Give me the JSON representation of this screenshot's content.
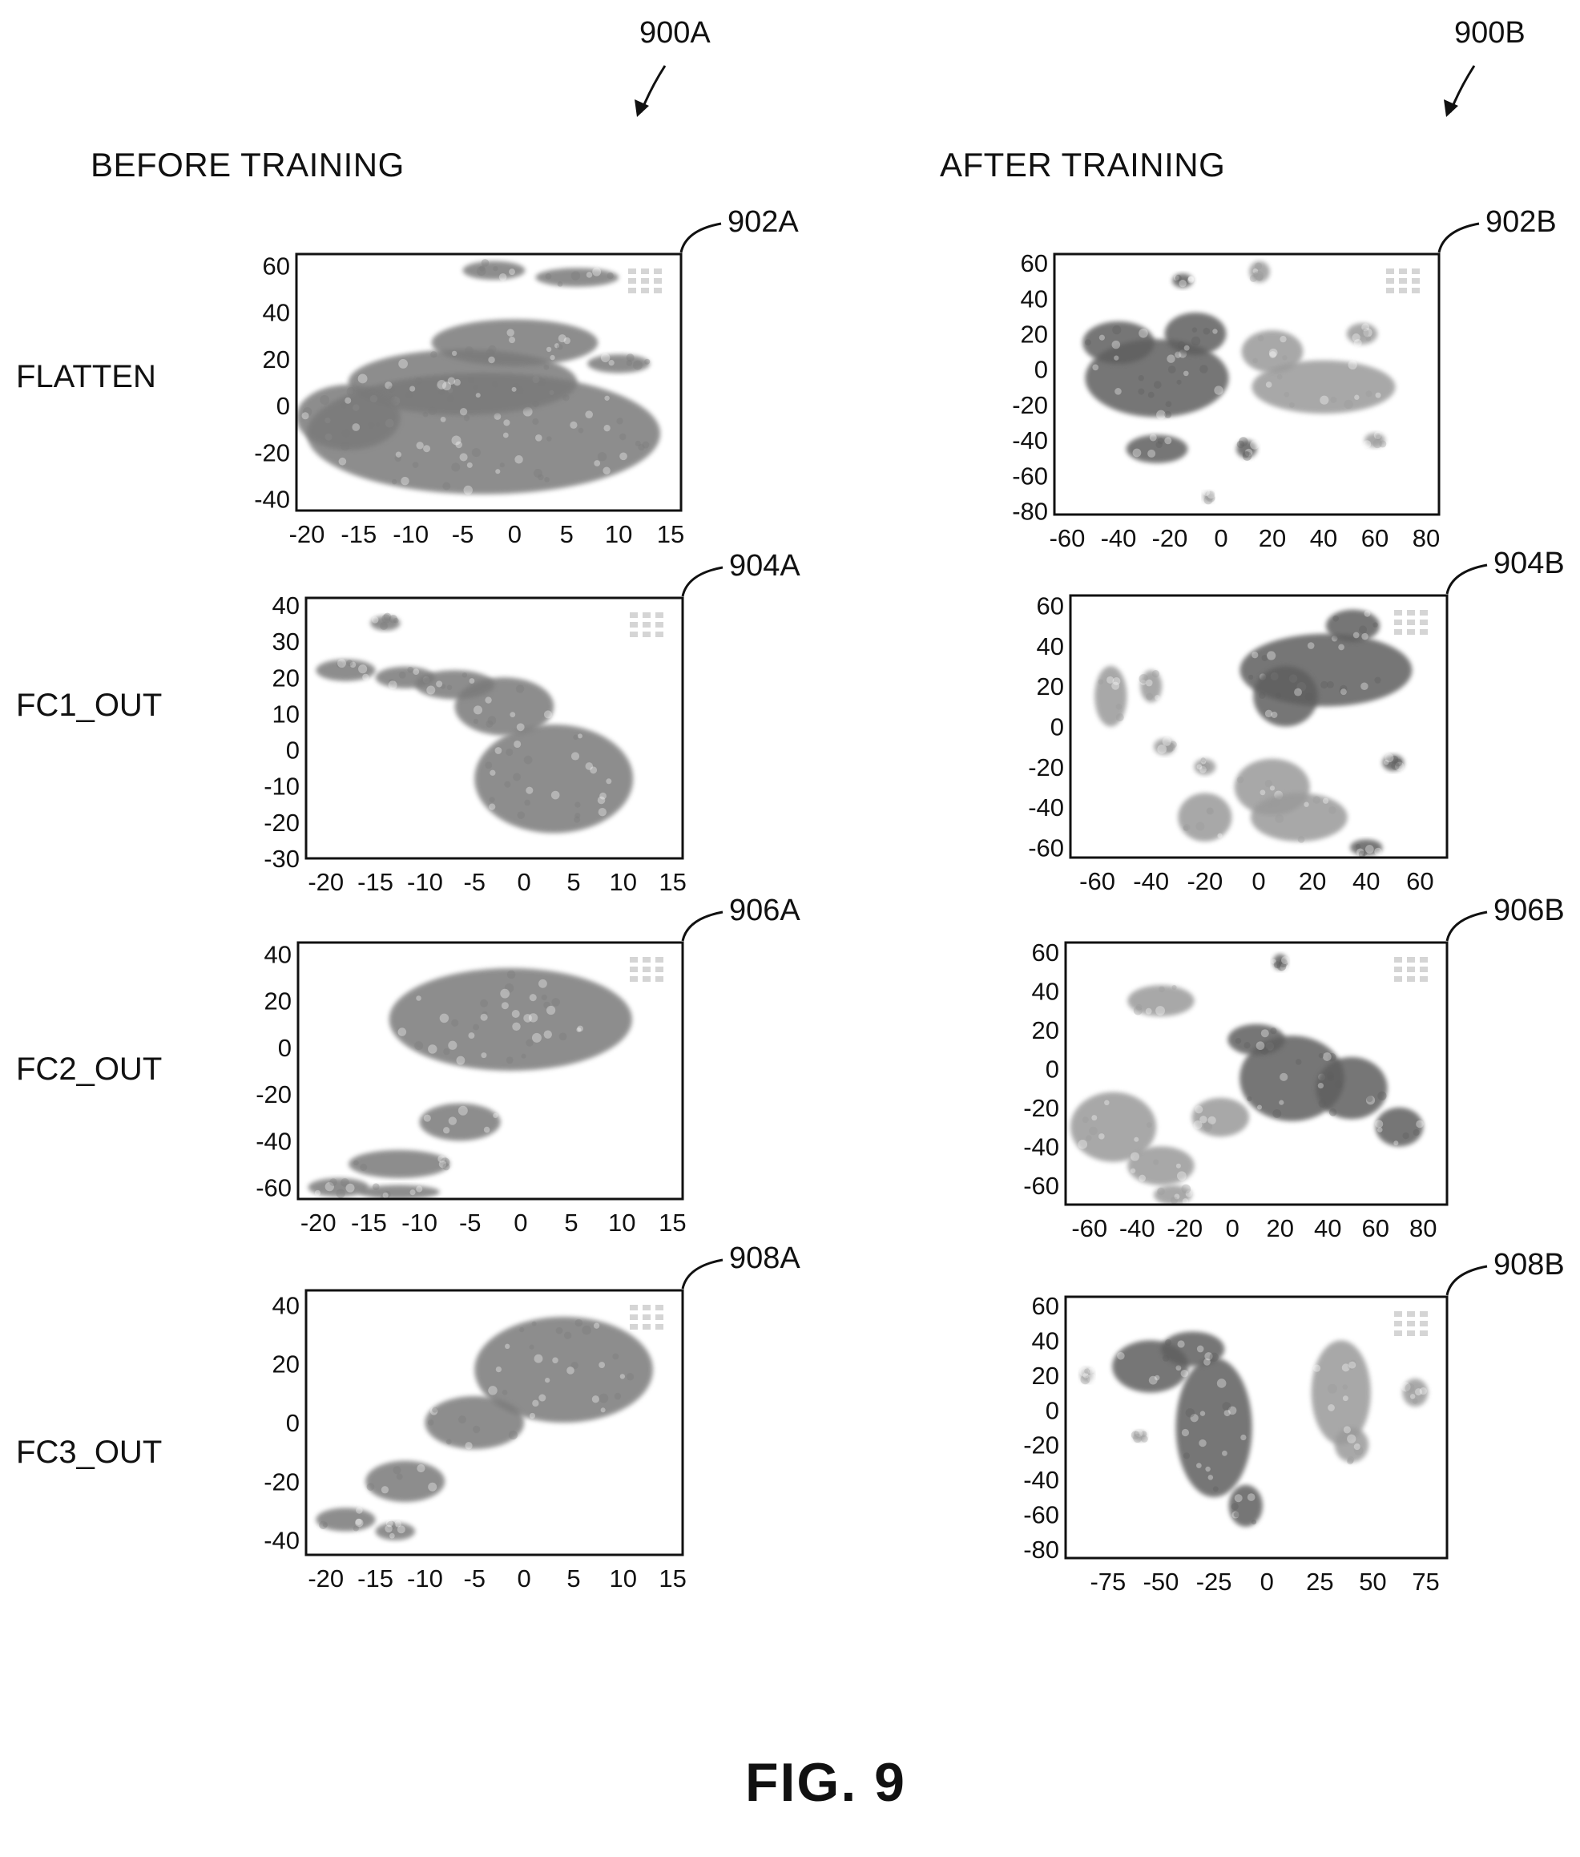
{
  "figure_label": "FIG. 9",
  "group_refs": {
    "left": "900A",
    "right": "900B"
  },
  "sections": {
    "before": "BEFORE TRAINING",
    "after": "AFTER TRAINING"
  },
  "row_labels": [
    "FLATTEN",
    "FC1_OUT",
    "FC2_OUT",
    "FC3_OUT"
  ],
  "colors": {
    "cluster_a": "#5e5e5e",
    "cluster_b": "#8e8e8e",
    "axis": "#111111"
  },
  "chart_data": [
    {
      "ref": "902A",
      "type": "scatter",
      "column": "before",
      "row": "FLATTEN",
      "xticks": [
        -20,
        -15,
        -10,
        -5,
        0,
        5,
        10,
        15
      ],
      "yticks": [
        60,
        40,
        20,
        0,
        -20,
        -40
      ],
      "xlim": [
        -21,
        16
      ],
      "ylim": [
        -45,
        65
      ],
      "series": [
        {
          "color": "#7a7a7a",
          "blobs": [
            [
              -3,
              -12,
              17,
              26
            ],
            [
              -5,
              10,
              11,
              14
            ],
            [
              0,
              27,
              8,
              10
            ],
            [
              6,
              55,
              4,
              4
            ],
            [
              -2,
              58,
              3,
              4
            ],
            [
              10,
              18,
              3,
              4
            ],
            [
              -16,
              -5,
              5,
              14
            ]
          ]
        }
      ]
    },
    {
      "ref": "904A",
      "type": "scatter",
      "column": "before",
      "row": "FC1_OUT",
      "xticks": [
        -20,
        -15,
        -10,
        -5,
        0,
        5,
        10,
        15
      ],
      "yticks": [
        40,
        30,
        20,
        10,
        0,
        -10,
        -20,
        -30
      ],
      "xlim": [
        -22,
        16
      ],
      "ylim": [
        -30,
        42
      ],
      "series": [
        {
          "color": "#7a7a7a",
          "blobs": [
            [
              3,
              -8,
              8,
              15
            ],
            [
              -2,
              12,
              5,
              8
            ],
            [
              -12,
              20,
              3,
              3
            ],
            [
              -18,
              22,
              3,
              3
            ],
            [
              -14,
              35,
              1.5,
              2
            ],
            [
              -7,
              18,
              4,
              4
            ]
          ]
        }
      ]
    },
    {
      "ref": "906A",
      "type": "scatter",
      "column": "before",
      "row": "FC2_OUT",
      "xticks": [
        -20,
        -15,
        -10,
        -5,
        0,
        5,
        10,
        15
      ],
      "yticks": [
        40,
        20,
        0,
        -20,
        -40,
        -60
      ],
      "xlim": [
        -22,
        16
      ],
      "ylim": [
        -65,
        45
      ],
      "series": [
        {
          "color": "#7a7a7a",
          "blobs": [
            [
              -1,
              12,
              12,
              22
            ],
            [
              -6,
              -32,
              4,
              8
            ],
            [
              -12,
              -50,
              5,
              6
            ],
            [
              -18,
              -60,
              3,
              4
            ],
            [
              -12,
              -62,
              4,
              3
            ]
          ]
        }
      ]
    },
    {
      "ref": "908A",
      "type": "scatter",
      "column": "before",
      "row": "FC3_OUT",
      "xticks": [
        -20,
        -15,
        -10,
        -5,
        0,
        5,
        10,
        15
      ],
      "yticks": [
        40,
        20,
        0,
        -20,
        -40
      ],
      "xlim": [
        -22,
        16
      ],
      "ylim": [
        -45,
        45
      ],
      "series": [
        {
          "color": "#7a7a7a",
          "blobs": [
            [
              4,
              18,
              9,
              18
            ],
            [
              -5,
              0,
              5,
              9
            ],
            [
              -12,
              -20,
              4,
              7
            ],
            [
              -18,
              -33,
              3,
              4
            ],
            [
              -13,
              -37,
              2,
              3
            ]
          ]
        }
      ]
    },
    {
      "ref": "902B",
      "type": "scatter",
      "column": "after",
      "row": "FLATTEN",
      "xticks": [
        -60,
        -40,
        -20,
        0,
        20,
        40,
        60,
        80
      ],
      "yticks": [
        60,
        40,
        20,
        0,
        -20,
        -40,
        -60,
        -80
      ],
      "xlim": [
        -65,
        85
      ],
      "ylim": [
        -82,
        65
      ],
      "series": [
        {
          "color": "#5e5e5e",
          "blobs": [
            [
              -25,
              -5,
              28,
              22
            ],
            [
              -40,
              15,
              14,
              12
            ],
            [
              -10,
              20,
              12,
              12
            ],
            [
              -25,
              -45,
              12,
              8
            ],
            [
              -15,
              50,
              4,
              4
            ],
            [
              10,
              -45,
              4,
              5
            ]
          ]
        },
        {
          "color": "#9a9a9a",
          "blobs": [
            [
              40,
              -10,
              28,
              15
            ],
            [
              20,
              10,
              12,
              12
            ],
            [
              15,
              55,
              4,
              6
            ],
            [
              55,
              20,
              6,
              6
            ],
            [
              60,
              -40,
              4,
              4
            ],
            [
              -5,
              -72,
              2,
              3
            ]
          ]
        }
      ]
    },
    {
      "ref": "904B",
      "type": "scatter",
      "column": "after",
      "row": "FC1_OUT",
      "xticks": [
        -60,
        -40,
        -20,
        0,
        20,
        40,
        60
      ],
      "yticks": [
        60,
        40,
        20,
        0,
        -20,
        -40,
        -60
      ],
      "xlim": [
        -70,
        70
      ],
      "ylim": [
        -65,
        65
      ],
      "series": [
        {
          "color": "#5e5e5e",
          "blobs": [
            [
              25,
              28,
              32,
              18
            ],
            [
              10,
              15,
              12,
              15
            ],
            [
              35,
              50,
              10,
              8
            ],
            [
              50,
              -18,
              4,
              4
            ],
            [
              40,
              -60,
              6,
              4
            ]
          ]
        },
        {
          "color": "#9a9a9a",
          "blobs": [
            [
              5,
              -30,
              14,
              14
            ],
            [
              15,
              -45,
              18,
              12
            ],
            [
              -20,
              -45,
              10,
              12
            ],
            [
              -55,
              15,
              6,
              15
            ],
            [
              -40,
              20,
              4,
              8
            ],
            [
              -35,
              -10,
              4,
              4
            ],
            [
              -20,
              -20,
              4,
              4
            ]
          ]
        }
      ]
    },
    {
      "ref": "906B",
      "type": "scatter",
      "column": "after",
      "row": "FC2_OUT",
      "xticks": [
        -60,
        -40,
        -20,
        0,
        20,
        40,
        60,
        80
      ],
      "yticks": [
        60,
        40,
        20,
        0,
        -20,
        -40,
        -60
      ],
      "xlim": [
        -70,
        90
      ],
      "ylim": [
        -70,
        65
      ],
      "series": [
        {
          "color": "#5e5e5e",
          "blobs": [
            [
              25,
              -5,
              22,
              22
            ],
            [
              50,
              -10,
              15,
              16
            ],
            [
              70,
              -30,
              10,
              10
            ],
            [
              10,
              15,
              12,
              8
            ],
            [
              20,
              55,
              3,
              4
            ]
          ]
        },
        {
          "color": "#9a9a9a",
          "blobs": [
            [
              -50,
              -30,
              18,
              18
            ],
            [
              -30,
              -50,
              14,
              10
            ],
            [
              -5,
              -25,
              12,
              10
            ],
            [
              -25,
              -65,
              8,
              5
            ],
            [
              -30,
              35,
              14,
              8
            ]
          ]
        }
      ]
    },
    {
      "ref": "908B",
      "type": "scatter",
      "column": "after",
      "row": "FC3_OUT",
      "xticks": [
        -75,
        -50,
        -25,
        0,
        25,
        50,
        75
      ],
      "yticks": [
        60,
        40,
        20,
        0,
        -20,
        -40,
        -60,
        -80
      ],
      "xlim": [
        -95,
        85
      ],
      "ylim": [
        -85,
        65
      ],
      "series": [
        {
          "color": "#5e5e5e",
          "blobs": [
            [
              -25,
              -10,
              18,
              40
            ],
            [
              -55,
              25,
              18,
              15
            ],
            [
              -35,
              35,
              15,
              10
            ],
            [
              -10,
              -55,
              8,
              12
            ]
          ]
        },
        {
          "color": "#9a9a9a",
          "blobs": [
            [
              35,
              10,
              14,
              30
            ],
            [
              40,
              -20,
              8,
              10
            ],
            [
              70,
              10,
              6,
              8
            ],
            [
              -85,
              20,
              3,
              4
            ],
            [
              -60,
              -15,
              3,
              3
            ]
          ]
        }
      ]
    }
  ]
}
